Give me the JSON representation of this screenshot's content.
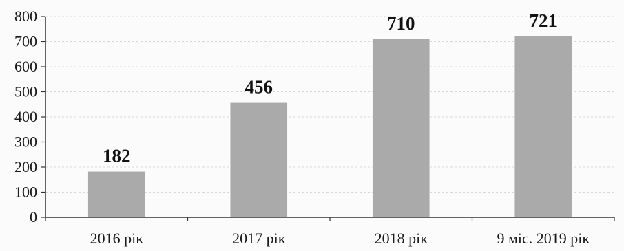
{
  "chart_data": {
    "type": "bar",
    "categories": [
      "2016 рік",
      "2017 рік",
      "2018 рік",
      "9 міс. 2019 рік"
    ],
    "values": [
      182,
      456,
      710,
      721
    ],
    "data_labels": [
      "182",
      "456",
      "710",
      "721"
    ],
    "title": "",
    "xlabel": "",
    "ylabel": "",
    "ylim": [
      0,
      800
    ],
    "yticks": [
      "0",
      "100",
      "200",
      "300",
      "400",
      "500",
      "600",
      "700",
      "800"
    ],
    "grid": true,
    "legend": "none",
    "bar_color": "#aaaaaa"
  }
}
